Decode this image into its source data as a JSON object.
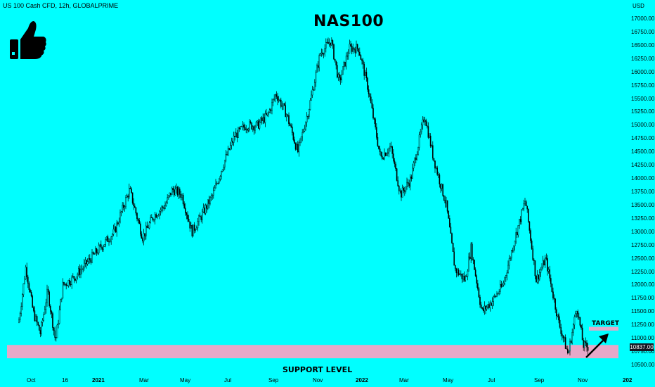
{
  "header": {
    "symbol": "US 100 Cash CFD, 12h, GLOBALPRIME",
    "currency": "USD",
    "title": "NAS100"
  },
  "annotations": {
    "support_label": "SUPPORT LEVEL",
    "target_label": "TARGET",
    "last_price": "10837.00",
    "thumb_icon": "thumbs-up-icon"
  },
  "colors": {
    "background": "#00ffff",
    "candles": "#000000",
    "support_zone": "#e6a8c8",
    "target_zone": "#e6a8c8",
    "price_tag": "#131722"
  },
  "chart_data": {
    "type": "line",
    "title": "NAS100",
    "xlabel": "",
    "ylabel": "",
    "ylim": [
      10400,
      17050
    ],
    "grid": false,
    "y_ticks": [
      "17000.00",
      "16750.00",
      "16500.00",
      "16250.00",
      "16000.00",
      "15750.00",
      "15500.00",
      "15250.00",
      "15000.00",
      "14750.00",
      "14500.00",
      "14250.00",
      "14000.00",
      "13750.00",
      "13500.00",
      "13250.00",
      "13000.00",
      "12750.00",
      "12500.00",
      "12250.00",
      "12000.00",
      "11750.00",
      "11500.00",
      "11250.00",
      "11000.00",
      "10750.00",
      "10500.00"
    ],
    "x_ticks": [
      {
        "label": "Oct",
        "bold": false
      },
      {
        "label": "16",
        "bold": false
      },
      {
        "label": "2021",
        "bold": true
      },
      {
        "label": "Mar",
        "bold": false
      },
      {
        "label": "May",
        "bold": false
      },
      {
        "label": "Jul",
        "bold": false
      },
      {
        "label": "Sep",
        "bold": false
      },
      {
        "label": "Nov",
        "bold": false
      },
      {
        "label": "2022",
        "bold": true
      },
      {
        "label": "Mar",
        "bold": false
      },
      {
        "label": "May",
        "bold": false
      },
      {
        "label": "Jul",
        "bold": false
      },
      {
        "label": "Sep",
        "bold": false
      },
      {
        "label": "Nov",
        "bold": false
      },
      {
        "label": "202",
        "bold": true
      }
    ],
    "series": [
      {
        "x": [
          "2020-09-15",
          "2020-09-25",
          "2020-10-05",
          "2020-10-15",
          "2020-10-25",
          "2020-11-05",
          "2020-11-15",
          "2020-12-01",
          "2020-12-20",
          "2021-01-05",
          "2021-01-25",
          "2021-02-15",
          "2021-03-05",
          "2021-03-20",
          "2021-04-05",
          "2021-04-15",
          "2021-04-28",
          "2021-05-12",
          "2021-05-25",
          "2021-06-10",
          "2021-06-25",
          "2021-07-10",
          "2021-07-25",
          "2021-08-10",
          "2021-08-25",
          "2021-09-05",
          "2021-09-20",
          "2021-10-05",
          "2021-10-20",
          "2021-11-05",
          "2021-11-20",
          "2021-12-01",
          "2021-12-15",
          "2021-12-28",
          "2022-01-10",
          "2022-01-27",
          "2022-02-10",
          "2022-02-24",
          "2022-03-10",
          "2022-03-29",
          "2022-04-10",
          "2022-04-28",
          "2022-05-10",
          "2022-05-24",
          "2022-06-01",
          "2022-06-16",
          "2022-06-30",
          "2022-07-15",
          "2022-07-30",
          "2022-08-15",
          "2022-08-30",
          "2022-09-12",
          "2022-09-30",
          "2022-10-13",
          "2022-10-25",
          "2022-11-03",
          "2022-11-10"
        ],
        "y": [
          11300,
          12350,
          11500,
          11100,
          11900,
          10950,
          12000,
          12150,
          12450,
          12700,
          13000,
          13800,
          12900,
          13300,
          13500,
          13800,
          13700,
          13000,
          13300,
          13700,
          14300,
          14800,
          15000,
          15000,
          15200,
          15600,
          15200,
          14500,
          15300,
          16350,
          16600,
          15800,
          16450,
          16450,
          15700,
          14400,
          14600,
          13700,
          14000,
          15200,
          14400,
          13500,
          12300,
          12100,
          12700,
          11500,
          11700,
          12000,
          12800,
          13600,
          12100,
          12500,
          11300,
          10700,
          11600,
          10870,
          10837
        ]
      }
    ],
    "support_zone": [
      10630,
      10880
    ],
    "target_zone": [
      11150,
      11220
    ]
  }
}
